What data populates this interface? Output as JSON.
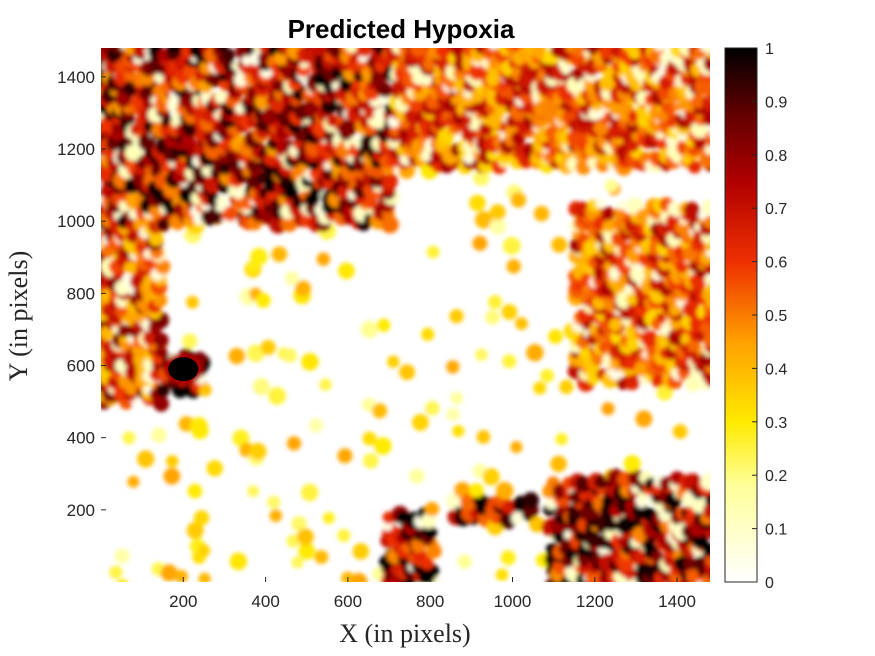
{
  "chart_data": {
    "type": "heatmap",
    "title": "Predicted Hypoxia",
    "xlabel": "X (in pixels)",
    "ylabel": "Y (in pixels)",
    "xlim": [
      0,
      1480
    ],
    "ylim": [
      0,
      1480
    ],
    "xticks": [
      200,
      400,
      600,
      800,
      1000,
      1200,
      1400
    ],
    "yticks": [
      200,
      400,
      600,
      800,
      1000,
      1200,
      1400
    ],
    "colorbar": {
      "range": [
        0,
        1
      ],
      "ticks": [
        0,
        0.1,
        0.2,
        0.3,
        0.4,
        0.5,
        0.6,
        0.7,
        0.8,
        0.9,
        1
      ],
      "tick_labels": [
        "0",
        "0.1",
        "0.2",
        "0.3",
        "0.4",
        "0.5",
        "0.6",
        "0.7",
        "0.8",
        "0.9",
        "1"
      ],
      "colormap": "hot (reversed): white at 0, yellow, orange, red, dark red/black at 1"
    },
    "colormap_stops": [
      "#ffffff",
      "#ffff60",
      "#ffd000",
      "#ff8000",
      "#e01000",
      "#900000",
      "#000000"
    ],
    "high_value_regions": [
      {
        "x": [
          0,
          700
        ],
        "y": [
          1000,
          1480
        ],
        "value": 0.8
      },
      {
        "x": [
          700,
          1480
        ],
        "y": [
          1150,
          1480
        ],
        "value": 0.6
      },
      {
        "x": [
          0,
          150
        ],
        "y": [
          500,
          1000
        ],
        "value": 0.65
      },
      {
        "x": [
          1150,
          1480
        ],
        "y": [
          550,
          1050
        ],
        "value": 0.6
      },
      {
        "x": [
          150,
          250
        ],
        "y": [
          540,
          620
        ],
        "value": 1.0
      },
      {
        "x": [
          700,
          800
        ],
        "y": [
          0,
          180
        ],
        "value": 0.85
      },
      {
        "x": [
          850,
          1050
        ],
        "y": [
          170,
          230
        ],
        "value": 0.95
      },
      {
        "x": [
          1100,
          1480
        ],
        "y": [
          0,
          280
        ],
        "value": 0.85
      }
    ],
    "low_value_region": {
      "x": [
        250,
        1150
      ],
      "y": [
        280,
        1100
      ],
      "value": 0.05
    }
  }
}
